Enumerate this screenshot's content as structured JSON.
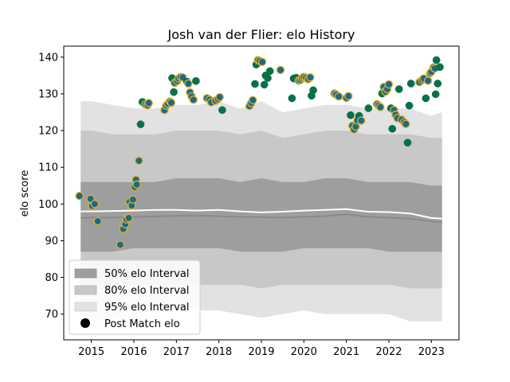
{
  "chart_data": {
    "type": "scatter",
    "title": "Josh van der Flier: elo History",
    "xlabel": "",
    "ylabel": "elo score",
    "xlim": [
      2014.35,
      2023.65
    ],
    "ylim": [
      63,
      143
    ],
    "x_ticks": [
      "2015",
      "2016",
      "2017",
      "2018",
      "2019",
      "2020",
      "2021",
      "2022",
      "2023"
    ],
    "y_ticks": [
      "70",
      "80",
      "90",
      "100",
      "110",
      "120",
      "130",
      "140"
    ],
    "legend": {
      "position": "lower-left",
      "entries": [
        "50% elo Interval",
        "80% elo Interval",
        "95% elo Interval",
        "Post Match elo"
      ]
    },
    "colors": {
      "band_50": "#9e9e9e",
      "band_80": "#c8c8c8",
      "band_95": "#e2e2e2",
      "median_line": "#888888",
      "mean_line": "#ffffff",
      "point_fill": "#1a6a8a",
      "point_edge": "#e0b030",
      "point_green": "#0a7048"
    },
    "bands": {
      "x": [
        2014.75,
        2015.0,
        2015.5,
        2016.0,
        2016.5,
        2017.0,
        2017.5,
        2018.0,
        2018.5,
        2019.0,
        2019.5,
        2020.0,
        2020.5,
        2021.0,
        2021.5,
        2022.0,
        2022.5,
        2023.0,
        2023.25
      ],
      "p95_low": [
        69,
        68,
        69,
        70,
        71,
        71,
        71,
        71,
        70,
        69,
        70,
        71,
        70,
        70,
        70,
        70,
        68,
        68,
        68
      ],
      "p95_high": [
        128,
        128,
        127,
        126,
        126,
        127,
        127,
        128,
        126,
        128,
        125,
        126,
        127,
        127,
        126,
        126,
        126,
        124,
        125
      ],
      "p80_low": [
        77,
        77,
        77,
        78,
        78,
        78,
        78,
        78,
        78,
        77,
        78,
        78,
        78,
        78,
        78,
        78,
        77,
        77,
        77
      ],
      "p80_high": [
        120,
        120,
        119,
        119,
        119,
        120,
        120,
        120,
        119,
        120,
        118,
        119,
        120,
        120,
        119,
        119,
        119,
        118,
        118
      ],
      "p50_low": [
        87,
        87,
        87,
        88,
        88,
        88,
        88,
        88,
        87,
        87,
        87,
        88,
        88,
        88,
        88,
        87,
        87,
        87,
        87
      ],
      "p50_high": [
        106,
        106,
        106,
        106,
        106,
        107,
        107,
        107,
        106,
        107,
        106,
        106,
        107,
        107,
        106,
        106,
        106,
        105,
        105
      ],
      "median": [
        96.2,
        96.3,
        96.3,
        96.5,
        96.6,
        96.8,
        96.8,
        96.7,
        96.5,
        96.4,
        96.3,
        96.5,
        96.7,
        97.2,
        96.5,
        96.3,
        96.0,
        95.3,
        95.0
      ],
      "mean": [
        98.0,
        98.0,
        98.1,
        98.2,
        98.4,
        98.4,
        98.2,
        98.4,
        98.0,
        97.7,
        97.9,
        98.2,
        98.4,
        98.6,
        97.9,
        97.8,
        97.4,
        96.2,
        96.0
      ]
    },
    "series": [
      {
        "name": "Post Match elo",
        "points": [
          [
            2014.72,
            102.2,
            "b"
          ],
          [
            2014.98,
            101.4,
            "b"
          ],
          [
            2015.02,
            99.5,
            "b"
          ],
          [
            2015.08,
            100.0,
            "b"
          ],
          [
            2015.15,
            95.3,
            "b"
          ],
          [
            2015.68,
            88.9,
            "b"
          ],
          [
            2015.75,
            93.2,
            "b"
          ],
          [
            2015.8,
            94.5,
            "b"
          ],
          [
            2015.83,
            95.8,
            "b"
          ],
          [
            2015.88,
            96.2,
            "b"
          ],
          [
            2015.9,
            100.6,
            "b"
          ],
          [
            2015.95,
            99.6,
            "b"
          ],
          [
            2015.98,
            101.2,
            "b"
          ],
          [
            2016.02,
            104.6,
            "b"
          ],
          [
            2016.05,
            106.6,
            "b"
          ],
          [
            2016.07,
            105.3,
            "b"
          ],
          [
            2016.12,
            111.8,
            "b"
          ],
          [
            2016.16,
            121.7,
            "g"
          ],
          [
            2016.2,
            127.8,
            "g"
          ],
          [
            2016.27,
            127.1,
            "b"
          ],
          [
            2016.32,
            126.9,
            "b"
          ],
          [
            2016.35,
            127.5,
            "b"
          ],
          [
            2016.72,
            125.6,
            "b"
          ],
          [
            2016.76,
            126.8,
            "b"
          ],
          [
            2016.8,
            127.3,
            "b"
          ],
          [
            2016.85,
            127.9,
            "b"
          ],
          [
            2016.88,
            127.6,
            "b"
          ],
          [
            2016.9,
            134.3,
            "g"
          ],
          [
            2016.94,
            130.5,
            "g"
          ],
          [
            2016.96,
            133.0,
            "b"
          ],
          [
            2017.02,
            133.5,
            "b"
          ],
          [
            2017.05,
            134.2,
            "b"
          ],
          [
            2017.1,
            134.6,
            "b"
          ],
          [
            2017.15,
            134.5,
            "b"
          ],
          [
            2017.25,
            133.3,
            "g"
          ],
          [
            2017.28,
            132.8,
            "b"
          ],
          [
            2017.32,
            130.4,
            "b"
          ],
          [
            2017.36,
            129.3,
            "b"
          ],
          [
            2017.4,
            128.4,
            "b"
          ],
          [
            2017.46,
            133.5,
            "g"
          ],
          [
            2017.72,
            128.8,
            "b"
          ],
          [
            2017.78,
            128.4,
            "b"
          ],
          [
            2017.82,
            127.7,
            "b"
          ],
          [
            2017.92,
            128.1,
            "b"
          ],
          [
            2017.98,
            128.6,
            "b"
          ],
          [
            2018.02,
            129.1,
            "b"
          ],
          [
            2018.08,
            125.6,
            "g"
          ],
          [
            2018.72,
            126.7,
            "b"
          ],
          [
            2018.76,
            127.5,
            "b"
          ],
          [
            2018.8,
            128.3,
            "b"
          ],
          [
            2018.85,
            132.7,
            "g"
          ],
          [
            2018.88,
            138.0,
            "g"
          ],
          [
            2018.92,
            139.2,
            "b"
          ],
          [
            2018.96,
            139.0,
            "b"
          ],
          [
            2019.02,
            138.7,
            "b"
          ],
          [
            2019.07,
            132.5,
            "g"
          ],
          [
            2019.1,
            135.0,
            "g"
          ],
          [
            2019.15,
            134.3,
            "g"
          ],
          [
            2019.2,
            136.2,
            "g"
          ],
          [
            2019.45,
            136.5,
            "b"
          ],
          [
            2019.72,
            128.8,
            "g"
          ],
          [
            2019.76,
            134.2,
            "g"
          ],
          [
            2019.82,
            134.4,
            "g"
          ],
          [
            2019.88,
            133.6,
            "b"
          ],
          [
            2019.92,
            133.8,
            "b"
          ],
          [
            2019.96,
            134.3,
            "b"
          ],
          [
            2020.0,
            134.6,
            "b"
          ],
          [
            2020.05,
            134.4,
            "b"
          ],
          [
            2020.1,
            134.0,
            "b"
          ],
          [
            2020.15,
            134.5,
            "b"
          ],
          [
            2020.18,
            129.5,
            "g"
          ],
          [
            2020.22,
            131.0,
            "g"
          ],
          [
            2020.72,
            130.1,
            "b"
          ],
          [
            2020.76,
            129.8,
            "b"
          ],
          [
            2020.82,
            129.3,
            "b"
          ],
          [
            2021.0,
            128.9,
            "b"
          ],
          [
            2021.05,
            129.4,
            "b"
          ],
          [
            2021.1,
            124.2,
            "g"
          ],
          [
            2021.14,
            121.3,
            "b"
          ],
          [
            2021.18,
            120.3,
            "b"
          ],
          [
            2021.22,
            121.1,
            "b"
          ],
          [
            2021.26,
            122.8,
            "b"
          ],
          [
            2021.3,
            124.0,
            "g"
          ],
          [
            2021.35,
            122.7,
            "b"
          ],
          [
            2021.52,
            126.1,
            "g"
          ],
          [
            2021.72,
            127.2,
            "b"
          ],
          [
            2021.76,
            126.8,
            "b"
          ],
          [
            2021.8,
            126.4,
            "b"
          ],
          [
            2021.84,
            130.1,
            "g"
          ],
          [
            2021.88,
            131.9,
            "b"
          ],
          [
            2021.92,
            130.6,
            "b"
          ],
          [
            2021.96,
            131.3,
            "b"
          ],
          [
            2022.0,
            132.6,
            "b"
          ],
          [
            2022.05,
            126.1,
            "g"
          ],
          [
            2022.08,
            120.5,
            "g"
          ],
          [
            2022.12,
            125.6,
            "b"
          ],
          [
            2022.16,
            124.3,
            "b"
          ],
          [
            2022.2,
            123.4,
            "b"
          ],
          [
            2022.24,
            131.3,
            "g"
          ],
          [
            2022.3,
            123.0,
            "b"
          ],
          [
            2022.36,
            122.3,
            "b"
          ],
          [
            2022.4,
            121.8,
            "b"
          ],
          [
            2022.44,
            116.7,
            "g"
          ],
          [
            2022.48,
            126.8,
            "g"
          ],
          [
            2022.52,
            132.8,
            "g"
          ],
          [
            2022.72,
            133.2,
            "b"
          ],
          [
            2022.78,
            133.8,
            "b"
          ],
          [
            2022.82,
            134.2,
            "b"
          ],
          [
            2022.87,
            128.8,
            "g"
          ],
          [
            2022.92,
            133.6,
            "b"
          ],
          [
            2022.97,
            135.6,
            "b"
          ],
          [
            2023.0,
            136.0,
            "b"
          ],
          [
            2023.05,
            137.2,
            "b"
          ],
          [
            2023.08,
            136.9,
            "b"
          ],
          [
            2023.1,
            129.9,
            "g"
          ],
          [
            2023.12,
            139.2,
            "g"
          ],
          [
            2023.15,
            132.8,
            "g"
          ],
          [
            2023.2,
            137.3,
            "g"
          ]
        ]
      }
    ]
  }
}
